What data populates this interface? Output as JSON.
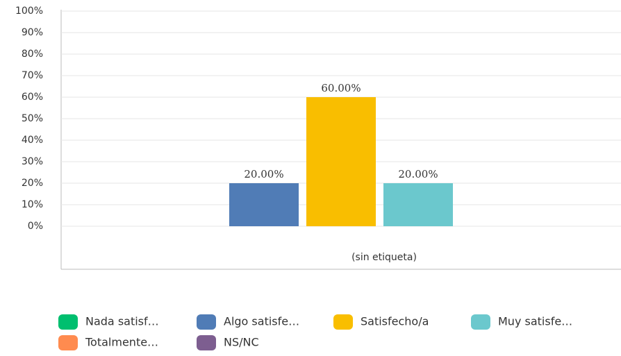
{
  "chart_data": {
    "type": "bar",
    "categories": [
      "(sin etiqueta)"
    ],
    "series": [
      {
        "name": "Nada satisf…",
        "color": "#00bf6f",
        "values": [
          null
        ]
      },
      {
        "name": "Algo satisfe…",
        "color": "#507cb6",
        "values": [
          20
        ],
        "value_labels": [
          "20.00%"
        ]
      },
      {
        "name": "Satisfecho/a",
        "color": "#f9be00",
        "values": [
          60
        ],
        "value_labels": [
          "60.00%"
        ]
      },
      {
        "name": "Muy satisfe…",
        "color": "#6bc8cd",
        "values": [
          20
        ],
        "value_labels": [
          "20.00%"
        ]
      },
      {
        "name": "Totalmente…",
        "color": "#ff8b4f",
        "values": [
          null
        ]
      },
      {
        "name": "NS/NC",
        "color": "#7d5e90",
        "values": [
          null
        ]
      }
    ],
    "ylim": [
      0,
      100
    ],
    "yticks": [
      {
        "value": 0,
        "label": "0%"
      },
      {
        "value": 10,
        "label": "10%"
      },
      {
        "value": 20,
        "label": "20%"
      },
      {
        "value": 30,
        "label": "30%"
      },
      {
        "value": 40,
        "label": "40%"
      },
      {
        "value": 50,
        "label": "50%"
      },
      {
        "value": 60,
        "label": "60%"
      },
      {
        "value": 70,
        "label": "70%"
      },
      {
        "value": 80,
        "label": "80%"
      },
      {
        "value": 90,
        "label": "90%"
      },
      {
        "value": 100,
        "label": "100%"
      }
    ],
    "grid": true
  }
}
